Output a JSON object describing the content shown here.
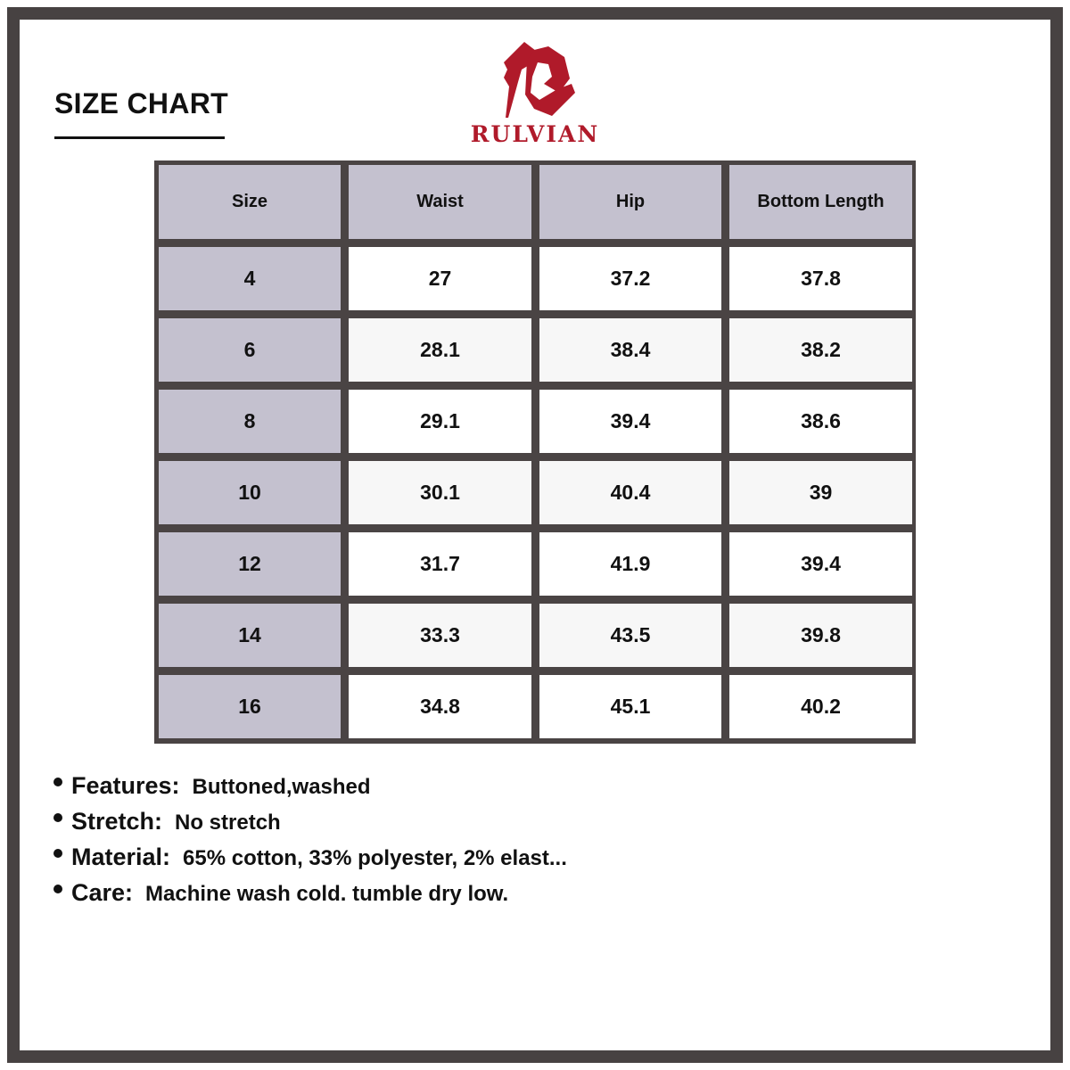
{
  "header": {
    "title": "SIZE CHART"
  },
  "brand": {
    "name": "RULVIAN",
    "color": "#b01a2a"
  },
  "table": {
    "columns": [
      "Size",
      "Waist",
      "Hip",
      "Bottom Length"
    ],
    "rows": [
      [
        "4",
        "27",
        "37.2",
        "37.8"
      ],
      [
        "6",
        "28.1",
        "38.4",
        "38.2"
      ],
      [
        "8",
        "29.1",
        "39.4",
        "38.6"
      ],
      [
        "10",
        "30.1",
        "40.4",
        "39"
      ],
      [
        "12",
        "31.7",
        "41.9",
        "39.4"
      ],
      [
        "14",
        "33.3",
        "43.5",
        "39.8"
      ],
      [
        "16",
        "34.8",
        "45.1",
        "40.2"
      ]
    ]
  },
  "details": [
    {
      "label": "Features:",
      "value": "Buttoned,washed"
    },
    {
      "label": "Stretch:",
      "value": "No stretch"
    },
    {
      "label": "Material:",
      "value": "65% cotton, 33% polyester, 2% elast..."
    },
    {
      "label": "Care:",
      "value": "Machine wash cold. tumble dry low."
    }
  ]
}
